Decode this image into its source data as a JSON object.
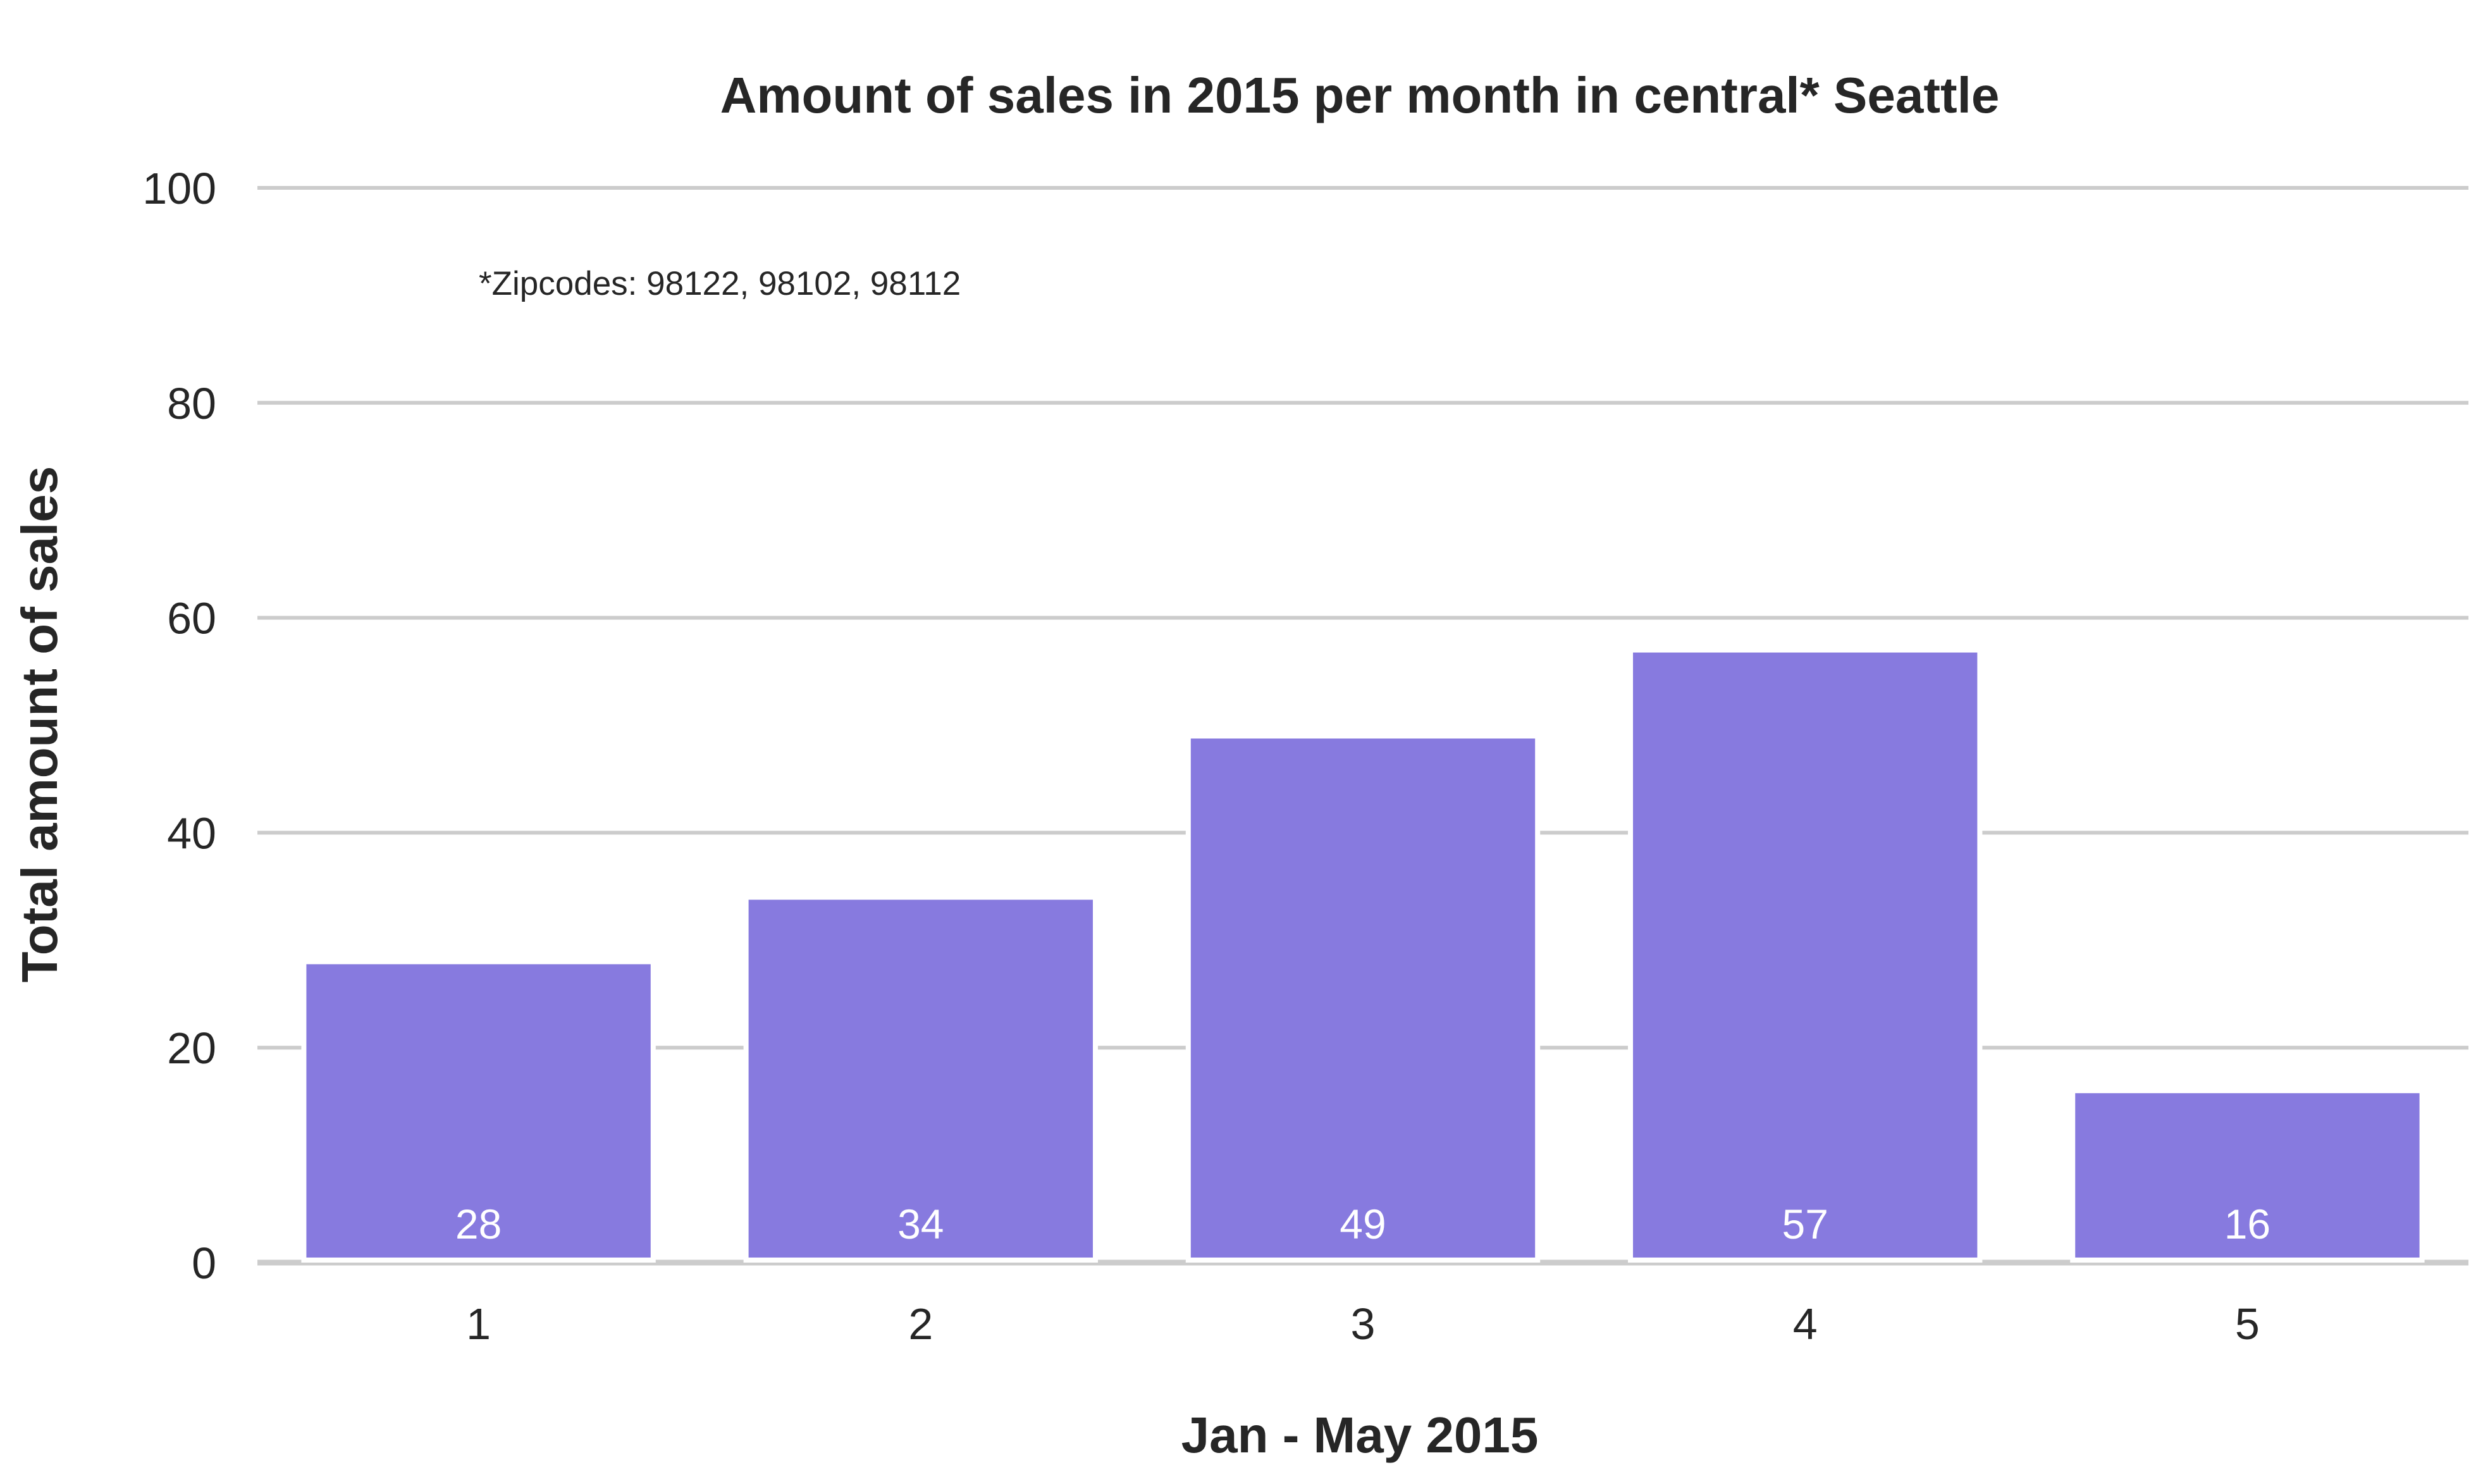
{
  "chart_data": {
    "type": "bar",
    "title": "Amount of sales in 2015 per month in central* Seattle",
    "xlabel": "Jan - May 2015",
    "ylabel": "Total amount of sales",
    "categories": [
      "1",
      "2",
      "3",
      "4",
      "5"
    ],
    "values": [
      28,
      34,
      49,
      57,
      16
    ],
    "data_labels": [
      "28",
      "34",
      "49",
      "57",
      "16"
    ],
    "ylim": [
      0,
      100
    ],
    "yticks": [
      "0",
      "20",
      "40",
      "60",
      "80",
      "100"
    ],
    "annotation": "*Zipcodes: 98122, 98102, 98112",
    "grid": true,
    "legend": "none",
    "colors": {
      "bar": "#877adf",
      "grid": "#cccccc",
      "text": "#262626",
      "bar_label": "#ffffff"
    }
  }
}
